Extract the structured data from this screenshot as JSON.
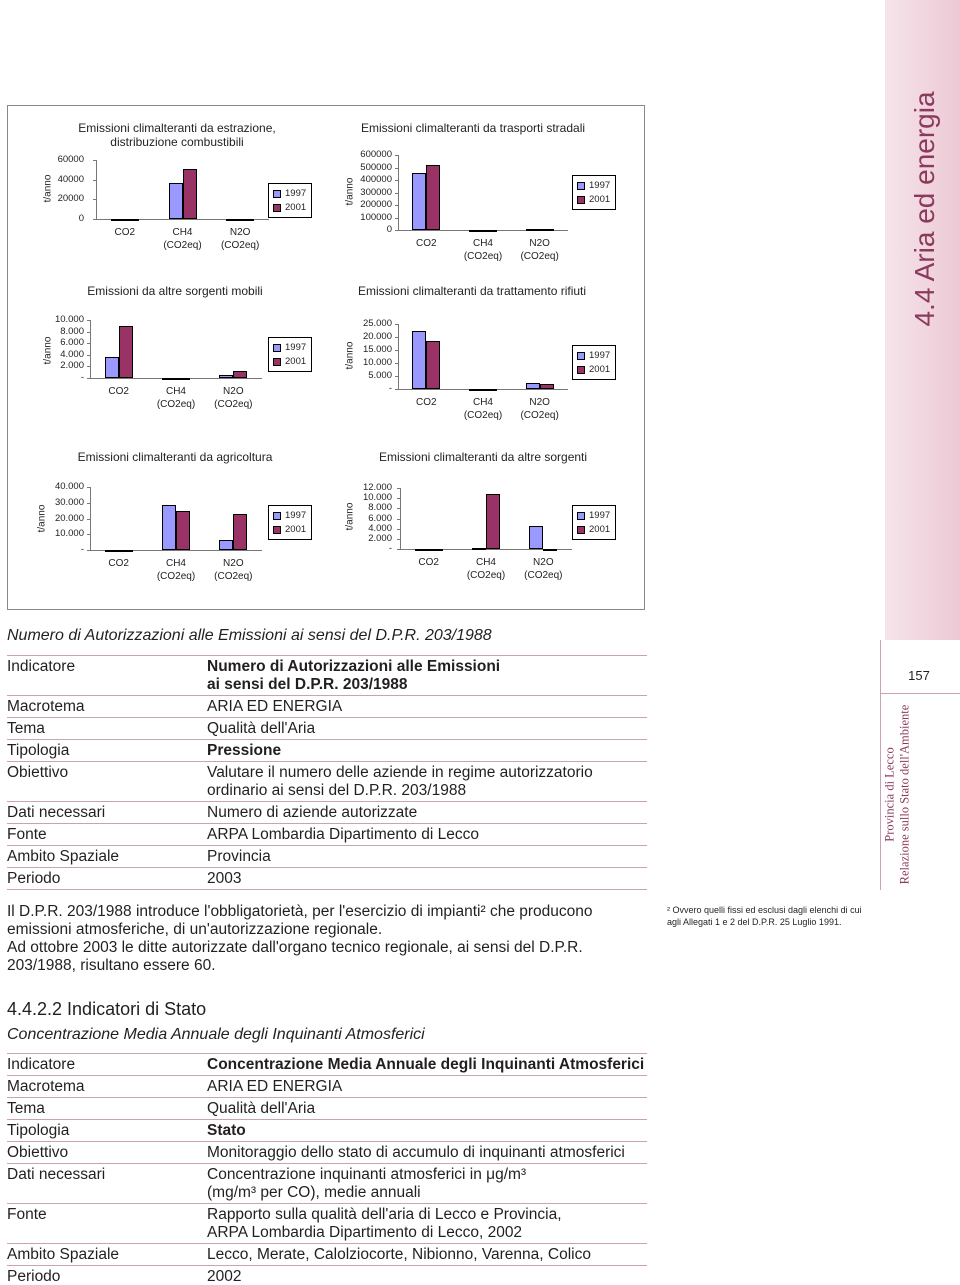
{
  "chart_data": [
    {
      "type": "bar",
      "title": "Emissioni climalteranti da estrazione, distribuzione combustibili",
      "ylabel": "t/anno",
      "categories": [
        "CO2",
        "CH4 (CO2eq)",
        "N2O (CO2eq)"
      ],
      "series": [
        {
          "name": "1997",
          "color": "#9999ff",
          "values": [
            0,
            36600,
            0
          ]
        },
        {
          "name": "2001",
          "color": "#993366",
          "values": [
            0,
            50800,
            0
          ]
        }
      ],
      "ylim": [
        0,
        60000
      ],
      "yticks": [
        0,
        20000,
        40000,
        60000
      ]
    },
    {
      "type": "bar",
      "title": "Emissioni climalteranti da trasporti stradali",
      "ylabel": "t/anno",
      "categories": [
        "CO2",
        "CH4 (CO2eq)",
        "N2O (CO2eq)"
      ],
      "series": [
        {
          "name": "1997",
          "color": "#9999ff",
          "values": [
            456000,
            2000,
            10000
          ]
        },
        {
          "name": "2001",
          "color": "#993366",
          "values": [
            520000,
            2000,
            10000
          ]
        }
      ],
      "ylim": [
        0,
        600000
      ],
      "yticks": [
        0,
        100000,
        200000,
        300000,
        400000,
        500000,
        600000
      ]
    },
    {
      "type": "bar",
      "title": "Emissioni da altre sorgenti mobili",
      "ylabel": "t/anno",
      "categories": [
        "CO2",
        "CH4 (CO2eq)",
        "N2O (CO2eq)"
      ],
      "series": [
        {
          "name": "1997",
          "color": "#9999ff",
          "values": [
            3600,
            0,
            500
          ]
        },
        {
          "name": "2001",
          "color": "#993366",
          "values": [
            9000,
            0,
            1200
          ]
        }
      ],
      "ylim": [
        0,
        10000
      ],
      "yticks": [
        {
          "value": 0,
          "label": "-"
        },
        {
          "value": 2000,
          "label": "2.000"
        },
        {
          "value": 4000,
          "label": "4.000"
        },
        {
          "value": 6000,
          "label": "6.000"
        },
        {
          "value": 8000,
          "label": "8.000"
        },
        {
          "value": 10000,
          "label": "10.000"
        }
      ]
    },
    {
      "type": "bar",
      "title": "Emissioni climalteranti da trattamento rifiuti",
      "ylabel": "t/anno",
      "categories": [
        "CO2",
        "CH4 (CO2eq)",
        "N2O (CO2eq)"
      ],
      "series": [
        {
          "name": "1997",
          "color": "#9999ff",
          "values": [
            22300,
            0,
            2300
          ]
        },
        {
          "name": "2001",
          "color": "#993366",
          "values": [
            18500,
            0,
            1900
          ]
        }
      ],
      "ylim": [
        0,
        25000
      ],
      "yticks": [
        {
          "value": 0,
          "label": "-"
        },
        {
          "value": 5000,
          "label": "5.000"
        },
        {
          "value": 10000,
          "label": "10.000"
        },
        {
          "value": 15000,
          "label": "15.000"
        },
        {
          "value": 20000,
          "label": "20.000"
        },
        {
          "value": 25000,
          "label": "25.000"
        }
      ]
    },
    {
      "type": "bar",
      "title": "Emissioni climalteranti da agricoltura",
      "ylabel": "t/anno",
      "categories": [
        "CO2",
        "CH4 (CO2eq)",
        "N2O (CO2eq)"
      ],
      "series": [
        {
          "name": "1997",
          "color": "#9999ff",
          "values": [
            0,
            28600,
            6300
          ]
        },
        {
          "name": "2001",
          "color": "#993366",
          "values": [
            0,
            24800,
            22900
          ]
        }
      ],
      "ylim": [
        0,
        40000
      ],
      "yticks": [
        {
          "value": 0,
          "label": "-"
        },
        {
          "value": 10000,
          "label": "10.000"
        },
        {
          "value": 20000,
          "label": "20.000"
        },
        {
          "value": 30000,
          "label": "30.000"
        },
        {
          "value": 40000,
          "label": "40.000"
        }
      ]
    },
    {
      "type": "bar",
      "title": "Emissioni climalteranti da altre sorgenti",
      "ylabel": "t/anno",
      "categories": [
        "CO2",
        "CH4 (CO2eq)",
        "N2O (CO2eq)"
      ],
      "series": [
        {
          "name": "1997",
          "color": "#9999ff",
          "values": [
            0,
            200,
            4500
          ]
        },
        {
          "name": "2001",
          "color": "#993366",
          "values": [
            0,
            10800,
            0
          ]
        }
      ],
      "ylim": [
        0,
        12000
      ],
      "yticks": [
        {
          "value": 0,
          "label": "-"
        },
        {
          "value": 2000,
          "label": "2.000"
        },
        {
          "value": 4000,
          "label": "4.000"
        },
        {
          "value": 6000,
          "label": "6.000"
        },
        {
          "value": 8000,
          "label": "8.000"
        },
        {
          "value": 10000,
          "label": "10.000"
        },
        {
          "value": 12000,
          "label": "12.000"
        }
      ]
    }
  ],
  "header": {
    "tab": "4.4 Aria ed energia",
    "page_number": "157",
    "side_1": "Provincia di Lecco",
    "side_2": "Relazione sullo Stato dell'Ambiente"
  },
  "section_1": {
    "title": "Numero di Autorizzazioni alle Emissioni ai sensi del D.P.R. 203/1988",
    "table": {
      "rows": [
        [
          "Indicatore",
          [
            "Numero di Autorizzazioni alle Emissioni",
            "ai sensi del D.P.R. 203/1988"
          ]
        ],
        [
          "Macrotema",
          [
            "ARIA ED ENERGIA"
          ]
        ],
        [
          "Tema",
          [
            "Qualità dell'Aria"
          ]
        ],
        [
          "Tipologia",
          [
            "Pressione"
          ]
        ],
        [
          "Obiettivo",
          [
            "Valutare il numero delle aziende in regime autorizzatorio",
            "ordinario ai sensi del D.P.R. 203/1988"
          ]
        ],
        [
          "Dati necessari",
          [
            "Numero di aziende autorizzate"
          ]
        ],
        [
          "Fonte",
          [
            "ARPA Lombardia Dipartimento di Lecco"
          ]
        ],
        [
          "Ambito Spaziale",
          [
            "Provincia"
          ]
        ],
        [
          "Periodo",
          [
            "2003"
          ]
        ]
      ]
    }
  },
  "paragraph": [
    "Il D.P.R. 203/1988 introduce l'obbligatorietà, per l'esercizio di impianti² che producono emissioni atmosferiche, di un'autorizzazione regionale.",
    "Ad ottobre 2003 le ditte autorizzate dall'organo tecnico regionale, ai sensi del D.P.R. 203/1988, risultano essere 60."
  ],
  "footnote": "² Ovvero quelli fissi ed esclusi dagli elenchi di cui agli Allegati 1 e 2 del D.P.R. 25 Luglio 1991.",
  "section_2": {
    "heading": "4.4.2.2 Indicatori di Stato",
    "subtitle": "Concentrazione Media Annuale degli Inquinanti Atmosferici",
    "table": {
      "rows": [
        [
          "Indicatore",
          [
            "Concentrazione Media Annuale degli Inquinanti Atmosferici"
          ]
        ],
        [
          "Macrotema",
          [
            "ARIA ED ENERGIA"
          ]
        ],
        [
          "Tema",
          [
            "Qualità dell'Aria"
          ]
        ],
        [
          "Tipologia",
          [
            "Stato"
          ]
        ],
        [
          "Obiettivo",
          [
            "Monitoraggio dello stato di accumulo di inquinanti atmosferici"
          ]
        ],
        [
          "Dati necessari",
          [
            "Concentrazione inquinanti atmosferici in μg/m³",
            "(mg/m³ per CO), medie annuali"
          ]
        ],
        [
          "Fonte",
          [
            "Rapporto sulla qualità dell'aria di Lecco e Provincia,",
            "ARPA Lombardia Dipartimento di Lecco, 2002"
          ]
        ],
        [
          "Ambito Spaziale",
          [
            "Lecco, Merate, Calolziocorte, Nibionno, Varenna, Colico"
          ]
        ],
        [
          "Periodo",
          [
            "2002"
          ]
        ]
      ]
    }
  }
}
